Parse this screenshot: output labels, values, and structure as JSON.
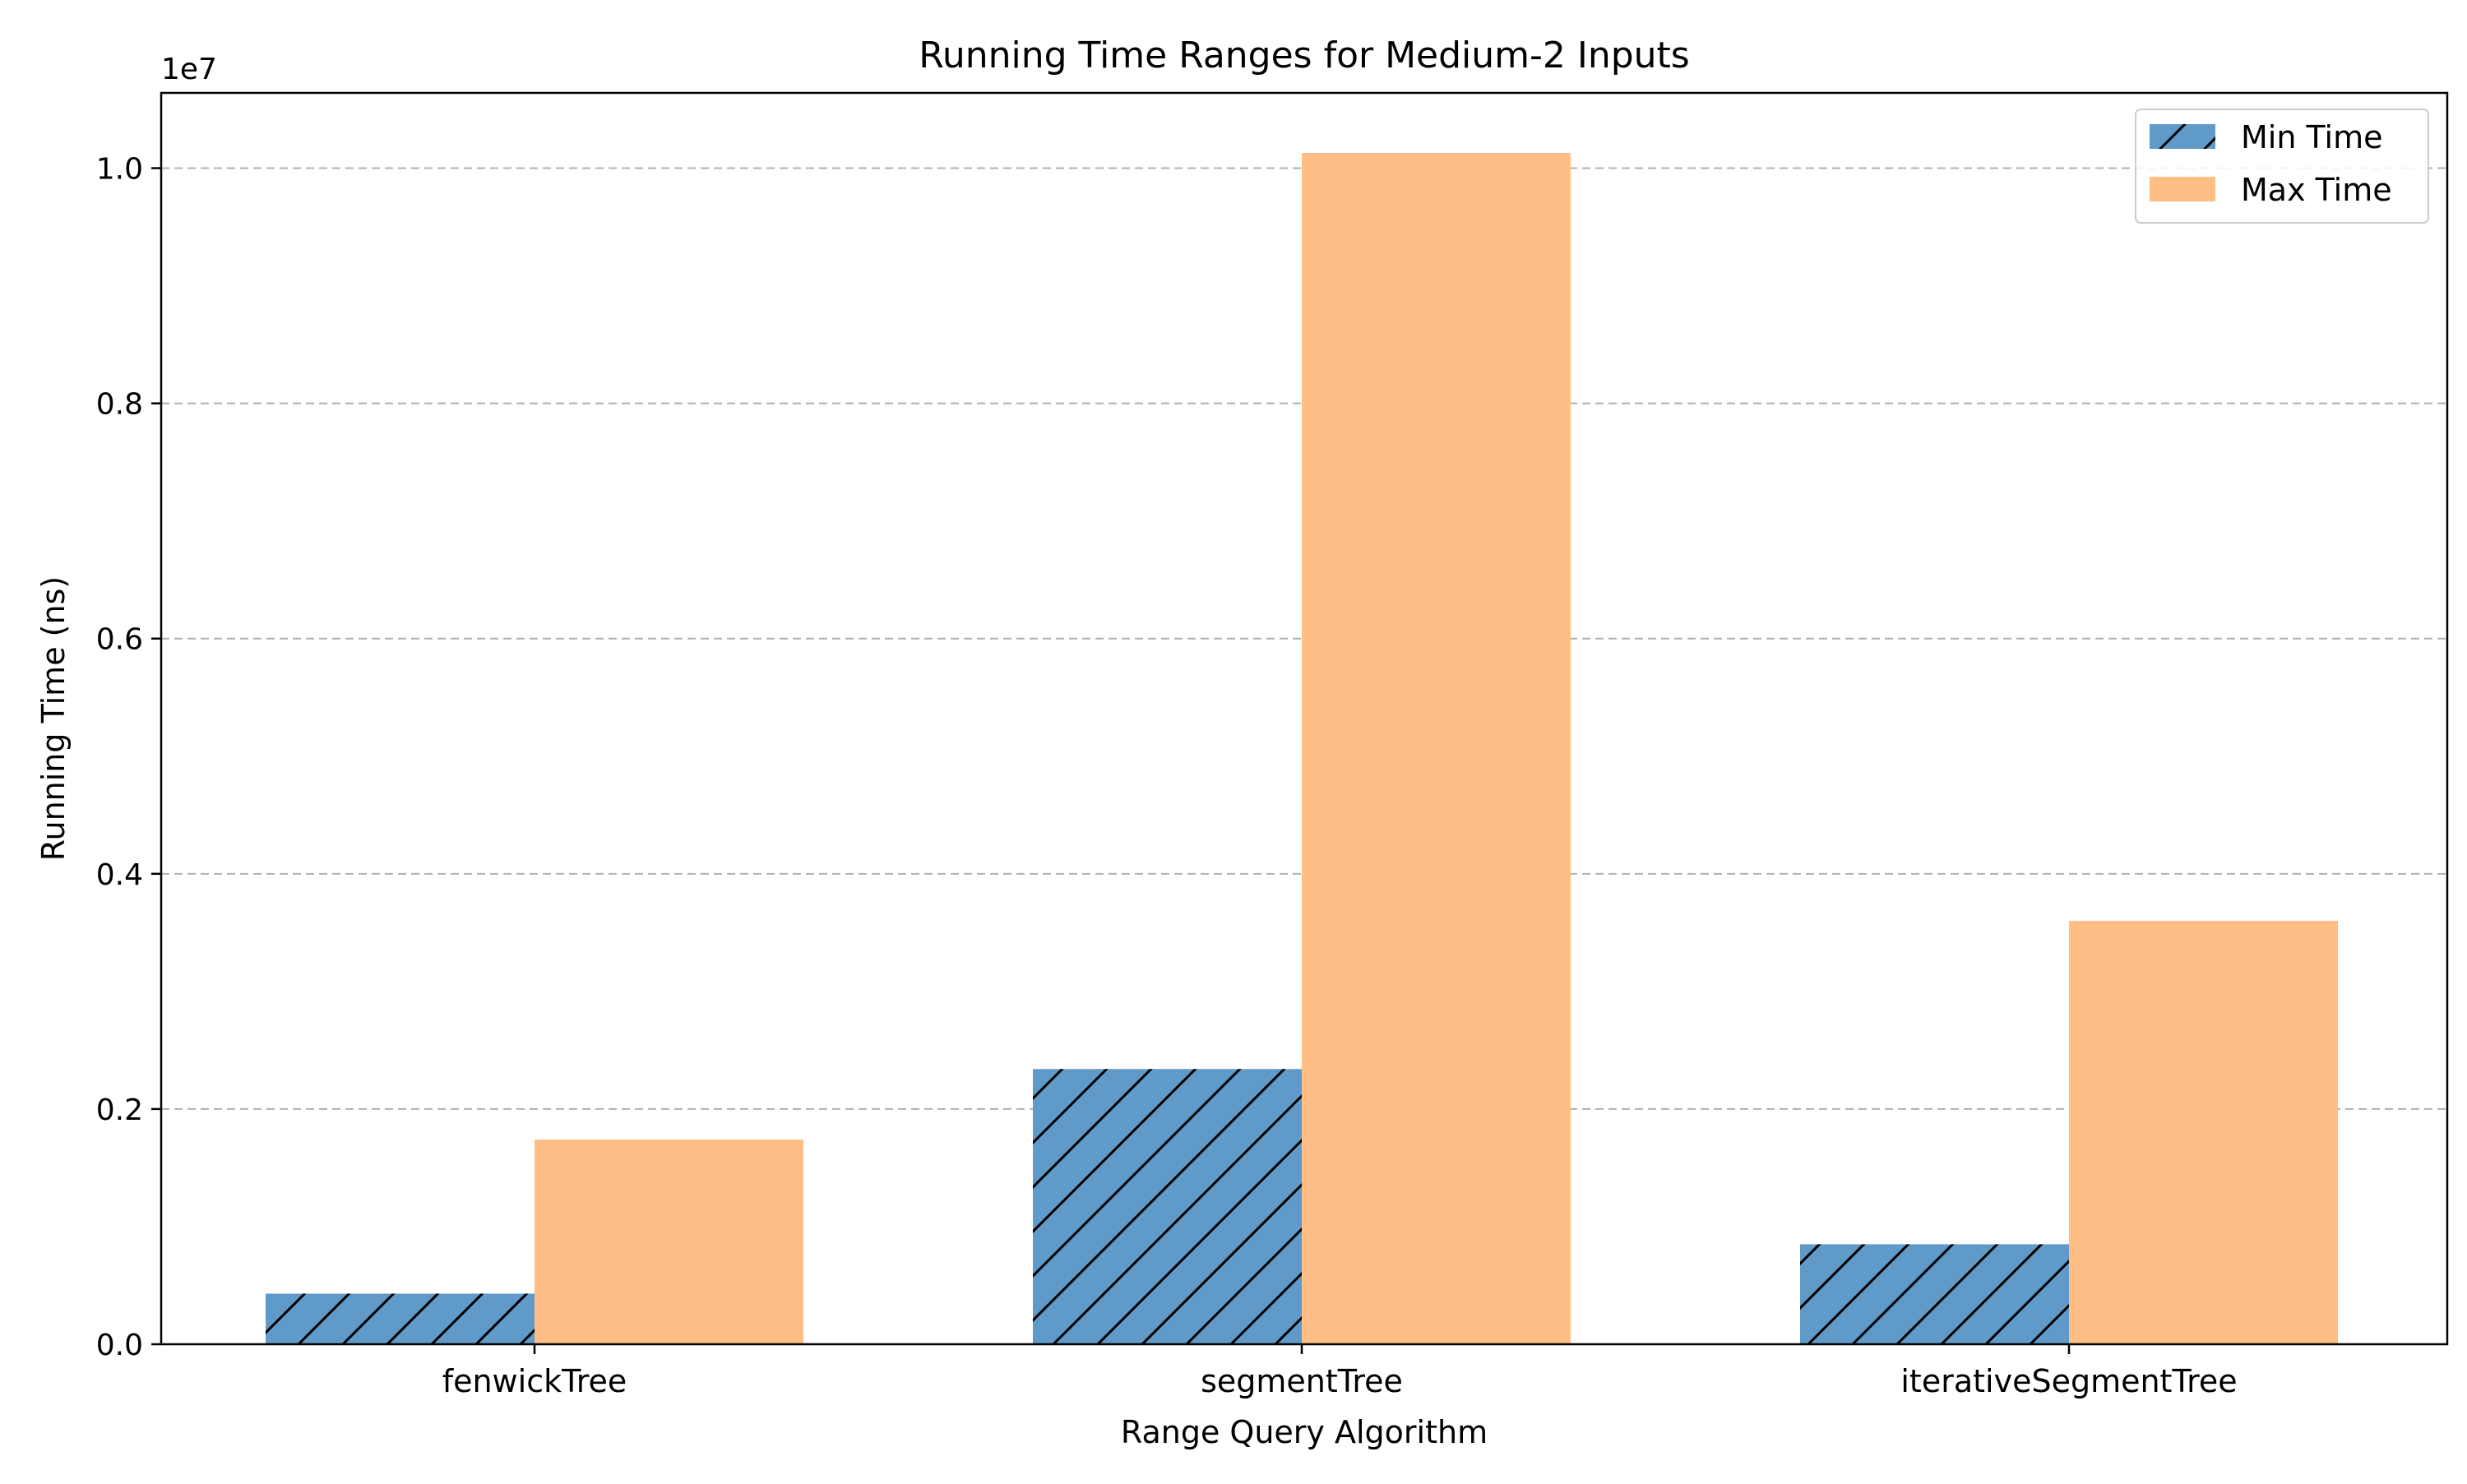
{
  "chart_data": {
    "type": "bar",
    "title": "Running Time Ranges for Medium-2 Inputs",
    "xlabel": "Range Query Algorithm",
    "ylabel": "Running Time (ns)",
    "y_offset_label": "1e7",
    "categories": [
      "fenwickTree",
      "segmentTree",
      "iterativeSegmentTree"
    ],
    "series": [
      {
        "name": "Min Time",
        "values": [
          430000,
          2340000,
          850000
        ],
        "color": "#5f9ac9",
        "hatch": "diagonal"
      },
      {
        "name": "Max Time",
        "values": [
          1740000,
          10130000,
          3600000
        ],
        "color": "#ffbe86",
        "hatch": "none"
      }
    ],
    "ylim": [
      0,
      10640000
    ],
    "yticks": [
      0,
      2000000,
      4000000,
      6000000,
      8000000,
      10000000
    ],
    "ytick_labels": [
      "0.0",
      "0.2",
      "0.4",
      "0.6",
      "0.8",
      "1.0"
    ],
    "grid": "y-dashed",
    "legend_position": "top-right"
  }
}
